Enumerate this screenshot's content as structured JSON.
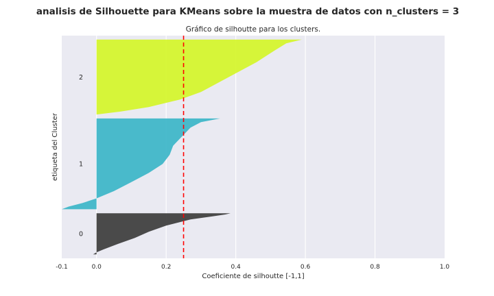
{
  "chart_data": {
    "type": "area",
    "title": "analisis de Silhouette para KMeans sobre la muestra de datos con n_clusters = 3",
    "subtitle": "Gráfico de silhoutte para los clusters.",
    "xlabel": "Coeficiente de silhoutte [-1,1]",
    "ylabel": "etiqueta del Cluster",
    "xlim": [
      -0.1,
      1.0
    ],
    "xticks": [
      "-0.1",
      "0.0",
      "0.2",
      "0.4",
      "0.6",
      "0.8",
      "1.0"
    ],
    "xtick_values": [
      -0.1,
      0.0,
      0.2,
      0.4,
      0.6,
      0.8,
      1.0
    ],
    "grid": true,
    "average_silhouette": 0.25,
    "average_line_color": "#ff0000",
    "background_color": "#eaeaf2",
    "clusters": [
      {
        "label": "0",
        "color": "#3c3c3c",
        "size": 62,
        "max_value": 0.385,
        "min_value": -0.01,
        "profile": [
          [
            0,
            0.385
          ],
          [
            0.03,
            0.37
          ],
          [
            0.08,
            0.33
          ],
          [
            0.15,
            0.27
          ],
          [
            0.3,
            0.2
          ],
          [
            0.45,
            0.15
          ],
          [
            0.6,
            0.11
          ],
          [
            0.75,
            0.06
          ],
          [
            0.88,
            0.02
          ],
          [
            0.95,
            0.0
          ],
          [
            1.0,
            -0.01
          ]
        ]
      },
      {
        "label": "1",
        "color": "#3bb5c8",
        "size": 137,
        "max_value": 0.355,
        "min_value": -0.1,
        "profile": [
          [
            0,
            0.355
          ],
          [
            0.04,
            0.3
          ],
          [
            0.1,
            0.27
          ],
          [
            0.2,
            0.245
          ],
          [
            0.3,
            0.22
          ],
          [
            0.4,
            0.21
          ],
          [
            0.5,
            0.19
          ],
          [
            0.6,
            0.15
          ],
          [
            0.7,
            0.1
          ],
          [
            0.8,
            0.05
          ],
          [
            0.88,
            0.0
          ],
          [
            0.93,
            -0.04
          ],
          [
            0.97,
            -0.08
          ],
          [
            1.0,
            -0.1
          ]
        ]
      },
      {
        "label": "2",
        "color": "#d4f529",
        "size": 113,
        "max_value": 0.59,
        "min_value": 0.0,
        "profile": [
          [
            0,
            0.59
          ],
          [
            0.05,
            0.545
          ],
          [
            0.15,
            0.51
          ],
          [
            0.3,
            0.46
          ],
          [
            0.45,
            0.4
          ],
          [
            0.6,
            0.34
          ],
          [
            0.7,
            0.3
          ],
          [
            0.8,
            0.24
          ],
          [
            0.9,
            0.15
          ],
          [
            0.96,
            0.07
          ],
          [
            1.0,
            0.0
          ]
        ]
      }
    ]
  }
}
